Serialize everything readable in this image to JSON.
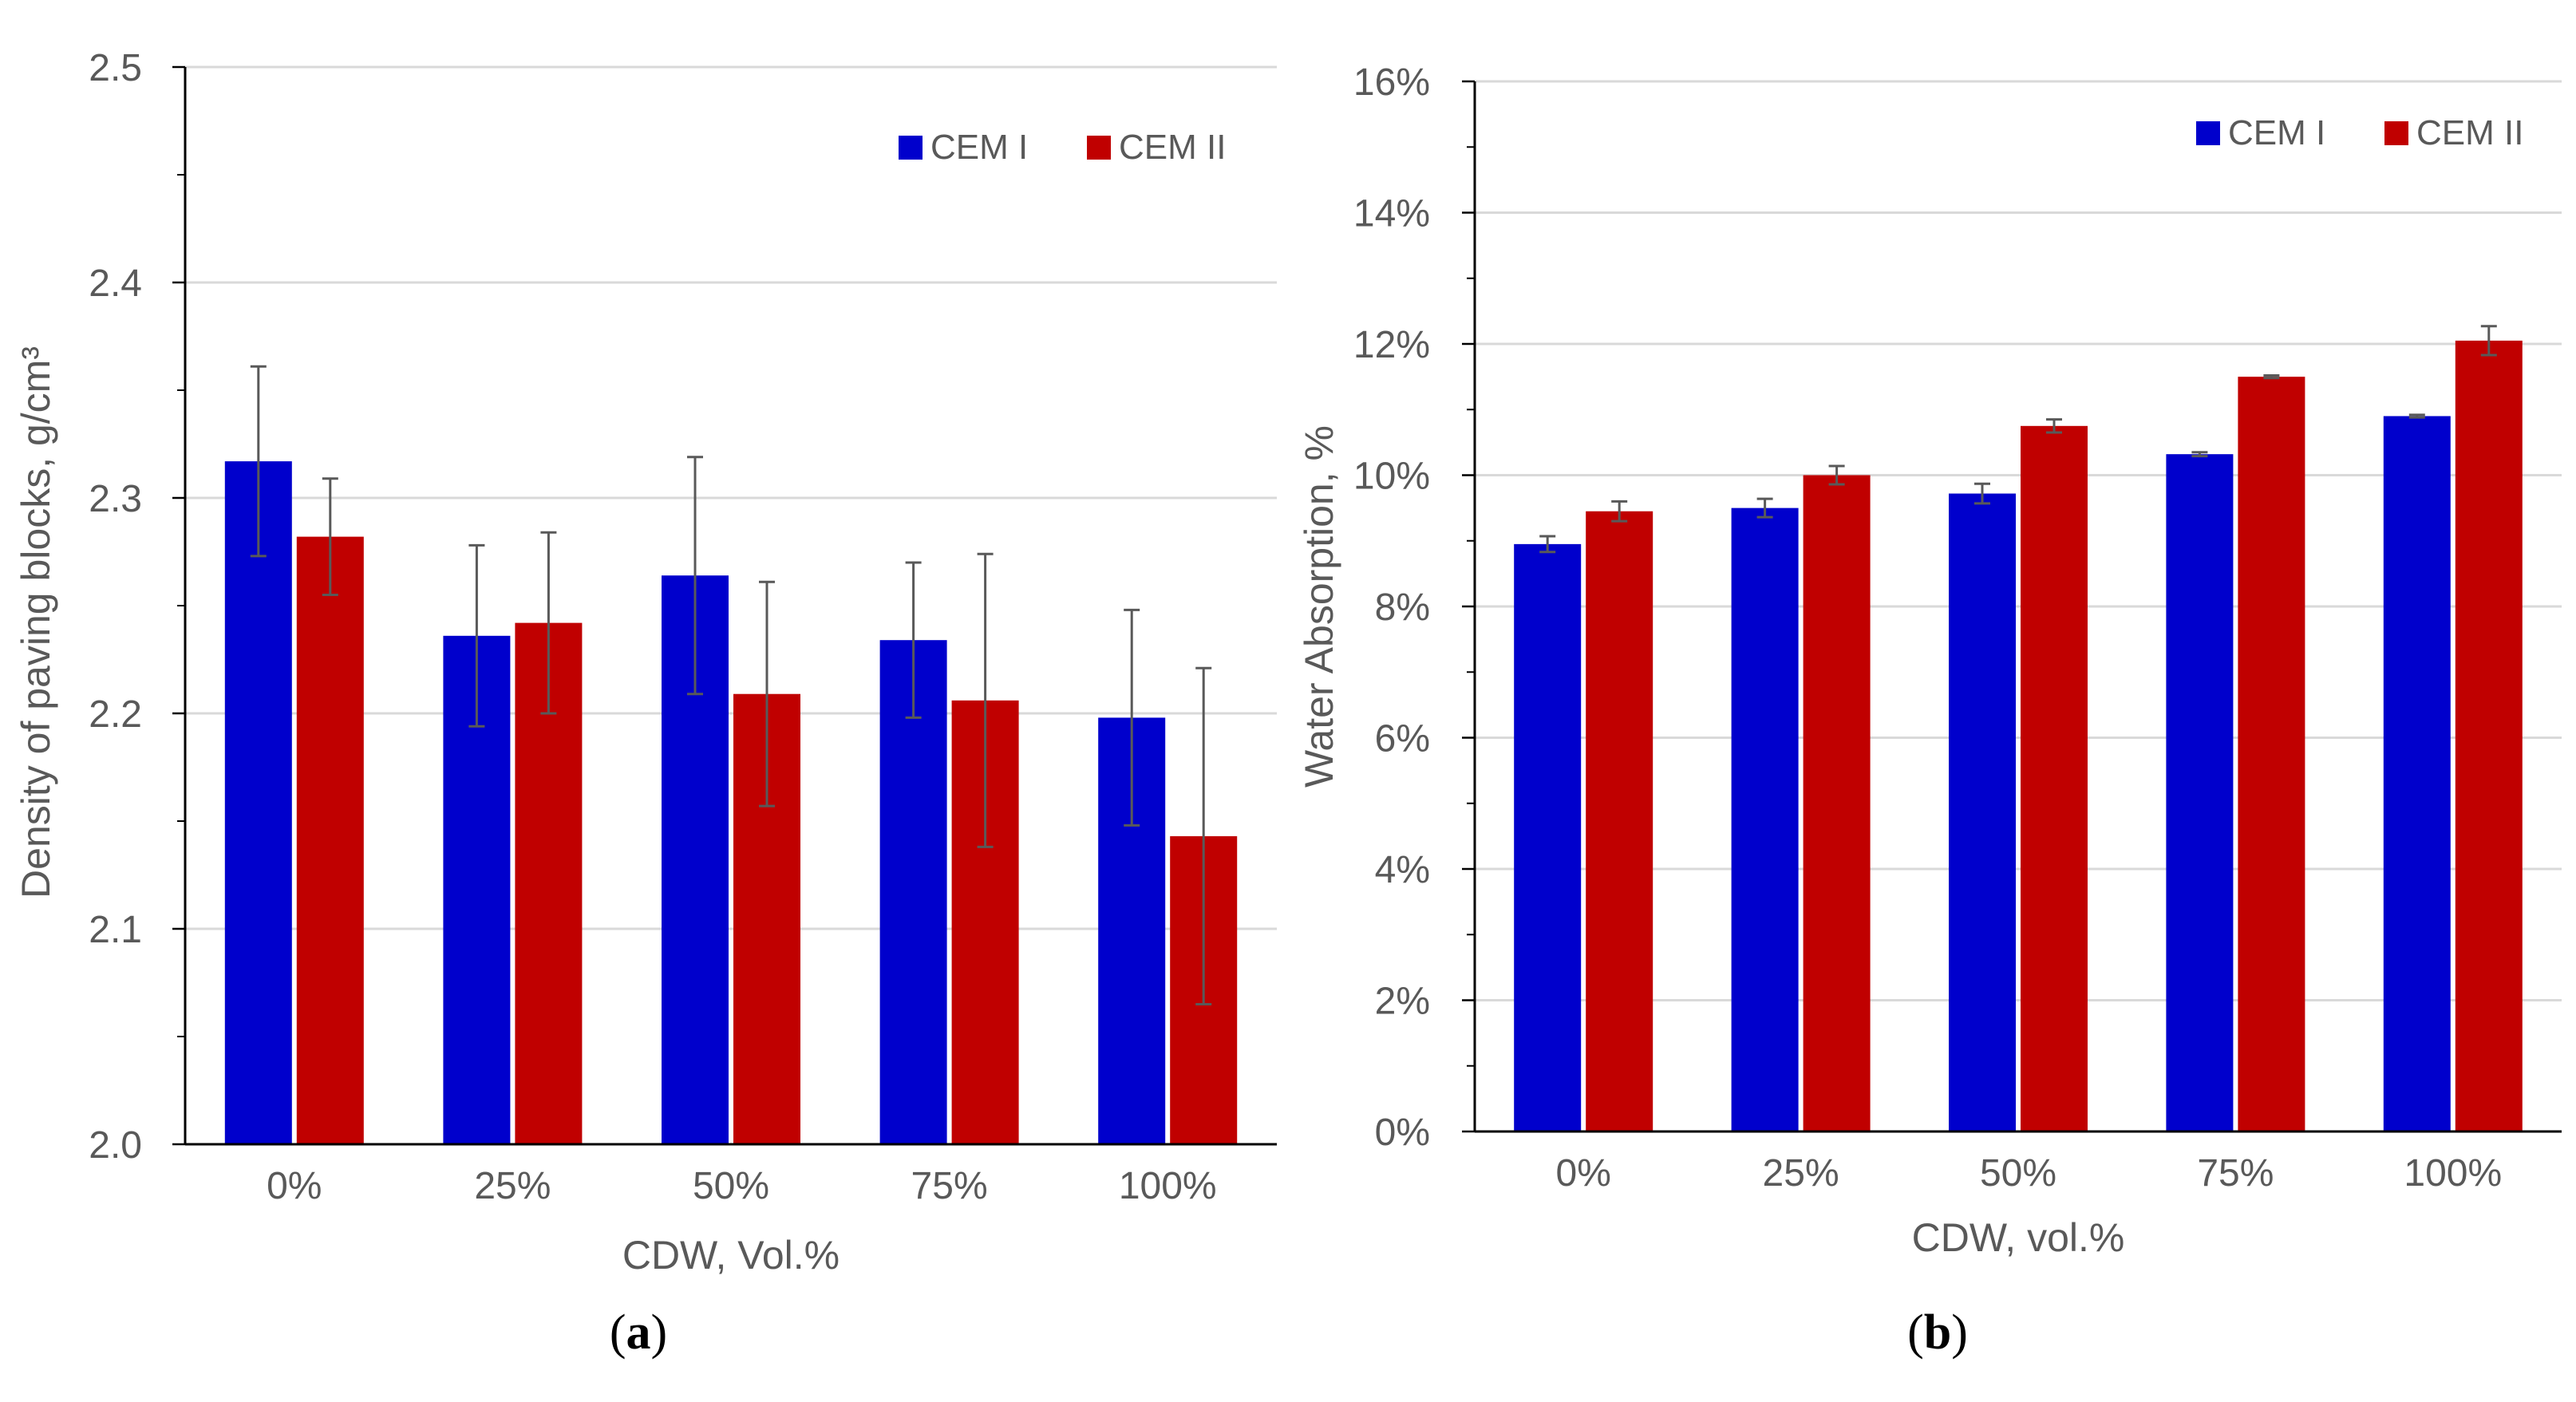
{
  "colors": {
    "series_a": "#0000cc",
    "series_b": "#c00000",
    "grid": "#d9d9d9",
    "axis": "#000000",
    "error_bar": "#595959"
  },
  "chart_data": [
    {
      "type": "bar",
      "panel_label": "a",
      "categories": [
        "0%",
        "25%",
        "50%",
        "75%",
        "100%"
      ],
      "series": [
        {
          "name": "CEM I",
          "values": [
            2.317,
            2.236,
            2.264,
            2.234,
            2.198
          ],
          "errors": [
            0.044,
            0.042,
            0.055,
            0.036,
            0.05
          ]
        },
        {
          "name": "CEM II",
          "values": [
            2.282,
            2.242,
            2.209,
            2.206,
            2.143
          ],
          "errors": [
            0.027,
            0.042,
            0.052,
            0.068,
            0.078
          ]
        }
      ],
      "ylabel": "Density of paving blocks, g/cm³",
      "xlabel": "CDW, Vol.%",
      "ylim": [
        2.0,
        2.5
      ],
      "yticks": [
        2.0,
        2.1,
        2.2,
        2.3,
        2.4,
        2.5
      ],
      "ytick_labels": [
        "2.0",
        "2.1",
        "2.2",
        "2.3",
        "2.4",
        "2.5"
      ],
      "grid": true,
      "legend": "top-right"
    },
    {
      "type": "bar",
      "panel_label": "b",
      "categories": [
        "0%",
        "25%",
        "50%",
        "75%",
        "100%"
      ],
      "series": [
        {
          "name": "CEM I",
          "values": [
            8.95,
            9.5,
            9.72,
            10.32,
            10.9
          ],
          "errors": [
            0.12,
            0.14,
            0.15,
            0.03,
            0.02
          ]
        },
        {
          "name": "CEM II",
          "values": [
            9.45,
            10.0,
            10.75,
            11.5,
            12.05
          ],
          "errors": [
            0.15,
            0.14,
            0.1,
            0.02,
            0.22
          ]
        }
      ],
      "ylabel": "Water Absorption, %",
      "xlabel": "CDW, vol.%",
      "ylim": [
        0,
        16
      ],
      "yticks": [
        0,
        2,
        4,
        6,
        8,
        10,
        12,
        14,
        16
      ],
      "ytick_labels": [
        "0%",
        "2%",
        "4%",
        "6%",
        "8%",
        "10%",
        "12%",
        "14%",
        "16%"
      ],
      "grid": true,
      "legend": "top-right"
    }
  ]
}
